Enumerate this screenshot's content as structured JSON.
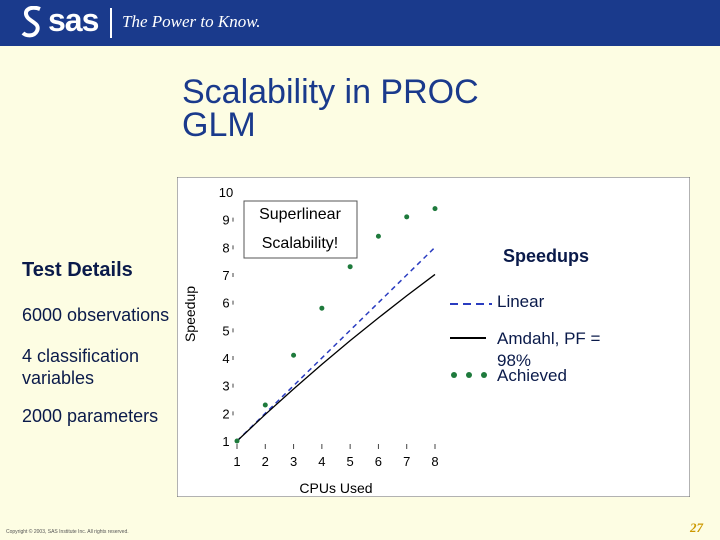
{
  "header": {
    "logo_text": "sas",
    "tagline": "The Power to Know.",
    "colors": {
      "bar": "#1a3a8c",
      "text": "#ffffff"
    }
  },
  "slide": {
    "title": "Scalability in PROC GLM",
    "details_heading": "Test Details",
    "details": [
      "6000 observations",
      "4 classification variables",
      "2000 parameters"
    ],
    "footer": "Copyright © 2003, SAS Institute Inc. All rights reserved.",
    "page_number": "27",
    "background": "#fdfde3"
  },
  "chart_data": {
    "type": "scatter",
    "title": "",
    "xlabel": "CPUs Used",
    "ylabel": "Speedup",
    "xlim": [
      1,
      8
    ],
    "ylim": [
      1,
      10
    ],
    "x_ticks": [
      "1",
      "2",
      "3",
      "4",
      "5",
      "6",
      "7",
      "8"
    ],
    "y_ticks": [
      "1",
      "2",
      "3",
      "4",
      "5",
      "6",
      "7",
      "8",
      "9",
      "10"
    ],
    "grid": false,
    "legend_title": "Speedups",
    "legend_position": "right",
    "annotation": "Superlinear Scalability!",
    "series": [
      {
        "name": "Linear",
        "style": "dashed",
        "color": "#2a3cc0",
        "x": [
          1,
          8
        ],
        "y": [
          1,
          8
        ]
      },
      {
        "name": "Amdahl, PF = 98%",
        "style": "solid",
        "color": "#000000",
        "x": [
          1,
          2,
          3,
          4,
          5,
          6,
          7,
          8
        ],
        "y": [
          1,
          1.96,
          2.88,
          3.77,
          4.63,
          5.45,
          6.25,
          7.02
        ]
      },
      {
        "name": "Achieved",
        "style": "points",
        "color": "#1e7a3c",
        "x": [
          1,
          2,
          3,
          4,
          5,
          6,
          7,
          8
        ],
        "y": [
          1,
          2.3,
          4.1,
          5.8,
          7.3,
          8.4,
          9.1,
          9.4
        ]
      }
    ]
  }
}
